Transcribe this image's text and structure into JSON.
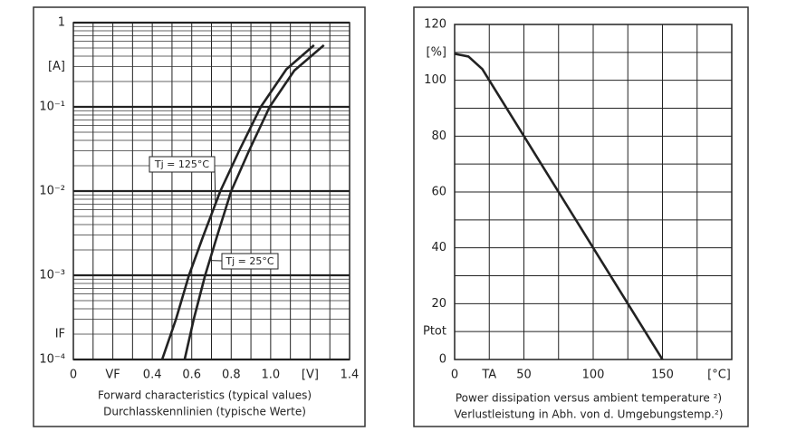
{
  "chart_data": [
    {
      "type": "line",
      "ylog": true,
      "xlim": [
        0,
        1.4
      ],
      "ylim": [
        0.0001,
        1
      ],
      "xticks": [
        0,
        {
          "value": 0.2,
          "label": "VF"
        },
        0.4,
        0.6,
        0.8,
        {
          "value": 1.0,
          "label": "1.0"
        },
        {
          "value": 1.2,
          "label": "[V]"
        },
        1.4
      ],
      "yticks": [
        {
          "value": 1,
          "label": "1"
        },
        {
          "value": 0.3,
          "label": "[A]"
        },
        {
          "value": 0.1,
          "label": "10⁻¹"
        },
        {
          "value": 0.01,
          "label": "10⁻²"
        },
        {
          "value": 0.001,
          "label": "10⁻³"
        },
        {
          "value": 0.0002,
          "label": "IF"
        },
        {
          "value": 0.0001,
          "label": "10⁻⁴"
        }
      ],
      "xgrid": [
        0,
        0.1,
        0.2,
        0.3,
        0.4,
        0.5,
        0.6,
        0.7,
        0.8,
        0.9,
        1.0,
        1.1,
        1.2,
        1.3,
        1.4
      ],
      "ygrid": [
        0.0001,
        0.001,
        0.01,
        0.1,
        1
      ],
      "grid": true,
      "series": [
        {
          "name": "Tj = 125°C",
          "color": "#222222",
          "x": [
            0.45,
            0.52,
            0.586,
            0.66,
            0.745,
            0.84,
            0.95,
            1.08,
            1.22
          ],
          "values": [
            0.0001,
            0.0003,
            0.001,
            0.003,
            0.01,
            0.03,
            0.1,
            0.28,
            0.54
          ]
        },
        {
          "name": "Tj = 25°C",
          "color": "#222222",
          "x": [
            0.564,
            0.61,
            0.668,
            0.73,
            0.8,
            0.89,
            0.995,
            1.12,
            1.27
          ],
          "values": [
            0.0001,
            0.0003,
            0.001,
            0.003,
            0.01,
            0.03,
            0.1,
            0.27,
            0.54
          ]
        }
      ],
      "caption": [
        "Forward characteristics (typical values)",
        "Durchlasskennlinien (typische Werte)"
      ]
    },
    {
      "type": "line",
      "ylog": false,
      "xlim": [
        0,
        200
      ],
      "ylim": [
        0,
        120
      ],
      "xticks": [
        0,
        {
          "value": 25,
          "label": "TA"
        },
        50,
        100,
        150
      ],
      "xunit": "[°C]",
      "yticks": [
        0,
        {
          "value": 10,
          "label": "Ptot"
        },
        20,
        40,
        60,
        80,
        100,
        {
          "value": 110,
          "label": "[%]"
        },
        120
      ],
      "xgrid": [
        0,
        25,
        50,
        75,
        100,
        125,
        150,
        175,
        200
      ],
      "ygrid": [
        0,
        10,
        20,
        30,
        40,
        50,
        60,
        70,
        80,
        90,
        100,
        110,
        120
      ],
      "grid": true,
      "series": [
        {
          "color": "#222222",
          "x": [
            0,
            10,
            20,
            25,
            50,
            100,
            150
          ],
          "values": [
            109.5,
            108.5,
            104,
            100,
            80,
            40,
            0
          ]
        }
      ],
      "caption": [
        "Power dissipation versus ambient temperature ²)",
        "Verlustleistung in Abh. von d. Umgebungstemp.²)"
      ]
    }
  ]
}
